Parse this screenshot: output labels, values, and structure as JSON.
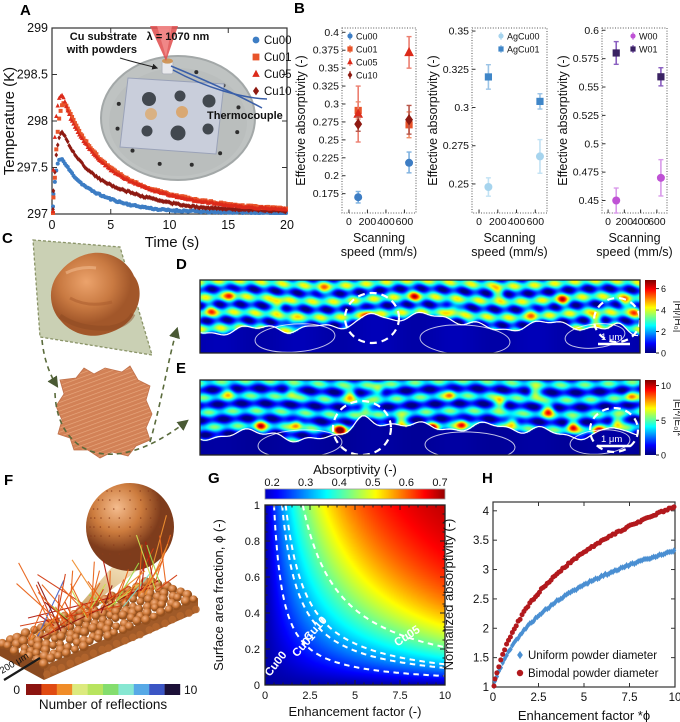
{
  "panels": {
    "a": {
      "label": "A",
      "xlabel": "Time (s)",
      "ylabel": "Temperature (K)",
      "inset": {
        "substrate_line1": "Cu substrate",
        "substrate_line2": "with powders",
        "laser": "λ = 1070 nm",
        "thermocouple": "Thermocouple"
      }
    },
    "b": {
      "label": "B",
      "ylabel": "Effective absorptivity (-)",
      "xlabel_line1": "Scanning",
      "xlabel_line2": "speed (mm/s)"
    },
    "c": {
      "label": "C"
    },
    "d": {
      "label": "D",
      "colorbar_ticks": [
        "0",
        "2",
        "4",
        "6"
      ],
      "colorbar_max_value": 6.8,
      "colorbar_label": "|H|/|H₀|",
      "scalebar": "1 μm"
    },
    "e": {
      "label": "E",
      "colorbar_ticks": [
        "0",
        "5",
        "10"
      ],
      "colorbar_max_value": 10.8,
      "colorbar_label": "|E|²/|E₀|²",
      "scalebar": "1 μm"
    },
    "f": {
      "label": "F",
      "scalebar": "200 μm",
      "colorbar_label": "Number of reflections",
      "colorbar_min": "0",
      "colorbar_max": "10",
      "colorbar_colors": [
        "#8c1410",
        "#e04a12",
        "#f08c28",
        "#dcea7e",
        "#b8e45f",
        "#84dd6e",
        "#87e7d2",
        "#57a9e6",
        "#3b55c4",
        "#1c1038"
      ]
    },
    "g": {
      "label": "G",
      "title": "Absorptivity (-)"
    },
    "h": {
      "label": "H"
    }
  },
  "chart_data": [
    {
      "id": "A",
      "type": "scatter",
      "xlabel": "Time (s)",
      "ylabel": "Temperature (K)",
      "xlim": [
        0,
        20
      ],
      "ylim": [
        297,
        299
      ],
      "xticks": [
        0,
        5,
        10,
        15,
        20
      ],
      "xtick_labels": [
        "0",
        "5",
        "10",
        "15",
        "20"
      ],
      "yticks": [
        297,
        297.5,
        298,
        298.5,
        299
      ],
      "ytick_labels": [
        "297",
        "297.5",
        "298",
        "298.5",
        "299"
      ],
      "legend_position": "ne",
      "series": [
        {
          "name": "Cu00",
          "marker": "circle",
          "color": "#3d7dc4",
          "x": [
            0,
            0.2,
            0.4,
            0.6,
            0.8,
            1,
            1.5,
            2,
            2.5,
            3,
            4,
            5,
            6,
            7,
            8,
            9,
            10,
            12,
            14,
            16,
            18,
            20
          ],
          "y": [
            297.08,
            297.3,
            297.5,
            297.58,
            297.6,
            297.56,
            297.47,
            297.39,
            297.33,
            297.28,
            297.21,
            297.16,
            297.12,
            297.09,
            297.07,
            297.05,
            297.04,
            297.03,
            297.02,
            297.02,
            297.01,
            297.01
          ]
        },
        {
          "name": "Cu10",
          "marker": "diamond",
          "color": "#8e1a12",
          "x": [
            0,
            0.2,
            0.4,
            0.6,
            0.8,
            1,
            1.5,
            2,
            2.5,
            3,
            4,
            5,
            6,
            7,
            8,
            9,
            10,
            12,
            14,
            16,
            18,
            20
          ],
          "y": [
            297.05,
            297.38,
            297.68,
            297.82,
            297.89,
            297.86,
            297.73,
            297.63,
            297.55,
            297.48,
            297.38,
            297.31,
            297.26,
            297.22,
            297.18,
            297.15,
            297.12,
            297.08,
            297.06,
            297.05,
            297.04,
            297.03
          ]
        },
        {
          "name": "Cu01",
          "marker": "square",
          "color": "#e8542a",
          "x": [
            0,
            0.2,
            0.4,
            0.6,
            0.8,
            1,
            1.5,
            2,
            2.5,
            3,
            4,
            5,
            6,
            7,
            8,
            9,
            10,
            12,
            14,
            16,
            18,
            20
          ],
          "y": [
            297.0,
            297.28,
            297.78,
            298.02,
            298.15,
            298.2,
            298.1,
            297.96,
            297.85,
            297.76,
            297.6,
            297.49,
            297.41,
            297.34,
            297.29,
            297.25,
            297.21,
            297.16,
            297.12,
            297.09,
            297.07,
            297.06
          ]
        },
        {
          "name": "Cu05",
          "marker": "triangle",
          "color": "#dc2a1a",
          "x": [
            0,
            0.2,
            0.4,
            0.6,
            0.8,
            1,
            1.5,
            2,
            2.5,
            3,
            4,
            5,
            6,
            7,
            8,
            9,
            10,
            12,
            14,
            16,
            18,
            20
          ],
          "y": [
            297.02,
            297.75,
            298.12,
            298.24,
            298.28,
            298.24,
            298.05,
            297.92,
            297.82,
            297.73,
            297.58,
            297.47,
            297.39,
            297.33,
            297.28,
            297.24,
            297.2,
            297.15,
            297.11,
            297.08,
            297.06,
            297.05
          ]
        }
      ],
      "legend_order": [
        "Cu00",
        "Cu01",
        "Cu05",
        "Cu10"
      ]
    },
    {
      "id": "B1",
      "type": "errorbar",
      "ylabel": "Effective absorptivity (-)",
      "xlabel_lines": [
        "Scanning",
        "speed (mm/s)"
      ],
      "xlim": [
        -75,
        725
      ],
      "ylim": [
        0.148,
        0.406
      ],
      "xticks": [
        0,
        200,
        400,
        600
      ],
      "xtick_labels": [
        "0",
        "200",
        "400",
        "600"
      ],
      "yticks": [
        0.175,
        0.2,
        0.225,
        0.25,
        0.275,
        0.3,
        0.325,
        0.35,
        0.375,
        0.4
      ],
      "ytick_labels": [
        "0.175",
        "0.2",
        "0.225",
        "0.25",
        "0.275",
        "0.3",
        "0.325",
        "0.35",
        "0.375",
        "0.4"
      ],
      "legend_position": "nw",
      "series": [
        {
          "name": "Cu00",
          "marker": "circle",
          "color": "#3d7dc4",
          "err_color": "#7fb2e0",
          "points": [
            {
              "x": 100,
              "y": 0.17,
              "lo": 0.162,
              "hi": 0.178
            },
            {
              "x": 650,
              "y": 0.218,
              "lo": 0.204,
              "hi": 0.233
            }
          ]
        },
        {
          "name": "Cu01",
          "marker": "square",
          "color": "#e8542a",
          "err_color": "#f0906a",
          "points": [
            {
              "x": 100,
              "y": 0.291,
              "lo": 0.279,
              "hi": 0.303
            },
            {
              "x": 650,
              "y": 0.271,
              "lo": 0.253,
              "hi": 0.289
            }
          ]
        },
        {
          "name": "Cu05",
          "marker": "triangle",
          "color": "#dc2a1a",
          "err_color": "#ec7f70",
          "points": [
            {
              "x": 100,
              "y": 0.286,
              "lo": 0.247,
              "hi": 0.325
            },
            {
              "x": 650,
              "y": 0.372,
              "lo": 0.35,
              "hi": 0.394
            }
          ]
        },
        {
          "name": "Cu10",
          "marker": "diamond",
          "color": "#8e1a12",
          "err_color": "#b8564a",
          "points": [
            {
              "x": 100,
              "y": 0.272,
              "lo": 0.262,
              "hi": 0.282
            },
            {
              "x": 650,
              "y": 0.278,
              "lo": 0.258,
              "hi": 0.298
            }
          ]
        }
      ]
    },
    {
      "id": "B2",
      "type": "errorbar",
      "ylabel": "Effective absorptivity (-)",
      "xlabel_lines": [
        "Scanning",
        "speed (mm/s)"
      ],
      "xlim": [
        -75,
        725
      ],
      "ylim": [
        0.231,
        0.352
      ],
      "xticks": [
        0,
        200,
        400,
        600
      ],
      "xtick_labels": [
        "0",
        "200",
        "400",
        "600"
      ],
      "yticks": [
        0.25,
        0.275,
        0.3,
        0.325,
        0.35
      ],
      "ytick_labels": [
        "0.25",
        "0.275",
        "0.3",
        "0.325",
        "0.35"
      ],
      "legend_position": "ne",
      "series": [
        {
          "name": "AgCu00",
          "marker": "circle",
          "color": "#a6d4ee",
          "err_color": "#c2e2f4",
          "points": [
            {
              "x": 100,
              "y": 0.248,
              "lo": 0.242,
              "hi": 0.254
            },
            {
              "x": 650,
              "y": 0.268,
              "lo": 0.257,
              "hi": 0.279
            }
          ]
        },
        {
          "name": "AgCu01",
          "marker": "square",
          "color": "#3f86c8",
          "err_color": "#9cc4e6",
          "points": [
            {
              "x": 100,
              "y": 0.32,
              "lo": 0.312,
              "hi": 0.328
            },
            {
              "x": 650,
              "y": 0.304,
              "lo": 0.299,
              "hi": 0.309
            }
          ]
        }
      ]
    },
    {
      "id": "B3",
      "type": "errorbar",
      "ylabel": "Effective absorptivity (-)",
      "xlabel_lines": [
        "Scanning",
        "speed (mm/s)"
      ],
      "xlim": [
        -75,
        725
      ],
      "ylim": [
        0.439,
        0.602
      ],
      "xticks": [
        0,
        200,
        400,
        600
      ],
      "xtick_labels": [
        "0",
        "200",
        "400",
        "600"
      ],
      "yticks": [
        0.45,
        0.475,
        0.5,
        0.525,
        0.55,
        0.575,
        0.6
      ],
      "ytick_labels": [
        "0.45",
        "0.475",
        "0.5",
        "0.525",
        "0.55",
        "0.575",
        "0.6"
      ],
      "legend_position": "ne",
      "series": [
        {
          "name": "W00",
          "marker": "circle",
          "color": "#bf52d5",
          "err_color": "#d99aea",
          "points": [
            {
              "x": 100,
              "y": 0.45,
              "lo": 0.439,
              "hi": 0.461
            },
            {
              "x": 650,
              "y": 0.47,
              "lo": 0.454,
              "hi": 0.486
            }
          ]
        },
        {
          "name": "W01",
          "marker": "square",
          "color": "#3a2263",
          "err_color": "#8a5fc0",
          "points": [
            {
              "x": 100,
              "y": 0.58,
              "lo": 0.57,
              "hi": 0.59
            },
            {
              "x": 650,
              "y": 0.559,
              "lo": 0.551,
              "hi": 0.567
            }
          ]
        }
      ]
    },
    {
      "id": "G",
      "type": "heatmap",
      "title": "Absorptivity (-)",
      "xlabel": "Enhancement factor (-)",
      "ylabel": "Surface area fraction, ϕ (-)",
      "xlim": [
        0,
        10
      ],
      "ylim": [
        0,
        1
      ],
      "xticks": [
        0,
        2.5,
        5,
        7.5,
        10
      ],
      "xtick_labels": [
        "0",
        "2.5",
        "5",
        "7.5",
        "10"
      ],
      "yticks": [
        0,
        0.2,
        0.4,
        0.6,
        0.8,
        1
      ],
      "ytick_labels": [
        "0",
        "0.2",
        "0.4",
        "0.6",
        "0.8",
        "1"
      ],
      "colorbar_tick_values": [
        0.2,
        0.3,
        0.4,
        0.5,
        0.6,
        0.7
      ],
      "colorbar_tick_labels": [
        "0.2",
        "0.3",
        "0.4",
        "0.5",
        "0.6",
        "0.7"
      ],
      "absorptivity_model": {
        "v0": 0.72,
        "amp": 0.56,
        "k": 0.3,
        "color_vmin": 0.14,
        "color_vmax": 0.73,
        "cbar_vmin": 0.179,
        "cbar_vmax": 0.715
      },
      "contours": [
        {
          "label": "Cu00",
          "c": 0.5,
          "label_x": 0.75,
          "label_y": 0.105,
          "rot": -52
        },
        {
          "label": "Cu01",
          "c": 0.95,
          "label_x": 2.3,
          "label_y": 0.21,
          "rot": -48
        },
        {
          "label": "Cu10",
          "c": 1.15,
          "label_x": 2.95,
          "label_y": 0.3,
          "rot": -48
        },
        {
          "label": "Cu05",
          "c": 2.1,
          "label_x": 8.0,
          "label_y": 0.255,
          "rot": -33
        }
      ]
    },
    {
      "id": "H",
      "type": "scatter",
      "xlabel": "Enhancement factor *ϕ",
      "ylabel": "Normalized absorptivity (-)",
      "xlim": [
        0,
        10
      ],
      "ylim": [
        1,
        4.15
      ],
      "xticks": [
        0,
        2.5,
        5,
        7.5,
        10
      ],
      "xtick_labels": [
        "0",
        "2.5",
        "5",
        "7.5",
        "10"
      ],
      "yticks": [
        1,
        1.5,
        2,
        2.5,
        3,
        3.5,
        4
      ],
      "ytick_labels": [
        "1",
        "1.5",
        "2",
        "2.5",
        "3",
        "3.5",
        "4"
      ],
      "legend_position": "se",
      "series": [
        {
          "name": "Uniform powder diameter",
          "marker": "diamond",
          "color": "#4a8fd2",
          "x": [
            0,
            0.25,
            0.5,
            0.75,
            1,
            1.25,
            1.5,
            1.75,
            2,
            2.25,
            2.5,
            2.75,
            3,
            3.25,
            3.5,
            3.75,
            4,
            4.25,
            4.5,
            4.75,
            5,
            5.25,
            5.5,
            5.75,
            6,
            6.25,
            6.5,
            6.75,
            7,
            7.25,
            7.5,
            7.75,
            8,
            8.25,
            8.5,
            8.75,
            9,
            9.25,
            9.5,
            9.75,
            10
          ],
          "y": [
            1.0,
            1.22,
            1.39,
            1.54,
            1.67,
            1.79,
            1.89,
            1.98,
            2.07,
            2.14,
            2.22,
            2.28,
            2.34,
            2.4,
            2.46,
            2.51,
            2.56,
            2.61,
            2.65,
            2.7,
            2.74,
            2.78,
            2.82,
            2.85,
            2.89,
            2.92,
            2.95,
            2.99,
            3.02,
            3.05,
            3.08,
            3.1,
            3.13,
            3.16,
            3.18,
            3.21,
            3.23,
            3.26,
            3.28,
            3.3,
            3.33
          ]
        },
        {
          "name": "Bimodal powder diameter",
          "marker": "circle",
          "color": "#b2191d",
          "x": [
            0,
            0.25,
            0.5,
            0.75,
            1,
            1.25,
            1.5,
            1.75,
            2,
            2.25,
            2.5,
            2.75,
            3,
            3.25,
            3.5,
            3.75,
            4,
            4.25,
            4.5,
            4.75,
            5,
            5.25,
            5.5,
            5.75,
            6,
            6.25,
            6.5,
            6.75,
            7,
            7.25,
            7.5,
            7.75,
            8,
            8.25,
            8.5,
            8.75,
            9,
            9.25,
            9.5,
            9.75,
            10
          ],
          "y": [
            1.0,
            1.29,
            1.52,
            1.72,
            1.89,
            2.04,
            2.17,
            2.3,
            2.41,
            2.51,
            2.6,
            2.7,
            2.77,
            2.85,
            2.93,
            2.99,
            3.06,
            3.12,
            3.18,
            3.24,
            3.29,
            3.35,
            3.39,
            3.44,
            3.49,
            3.53,
            3.58,
            3.62,
            3.66,
            3.7,
            3.74,
            3.77,
            3.81,
            3.85,
            3.88,
            3.91,
            3.95,
            3.98,
            4.01,
            4.04,
            4.07
          ]
        }
      ]
    }
  ]
}
